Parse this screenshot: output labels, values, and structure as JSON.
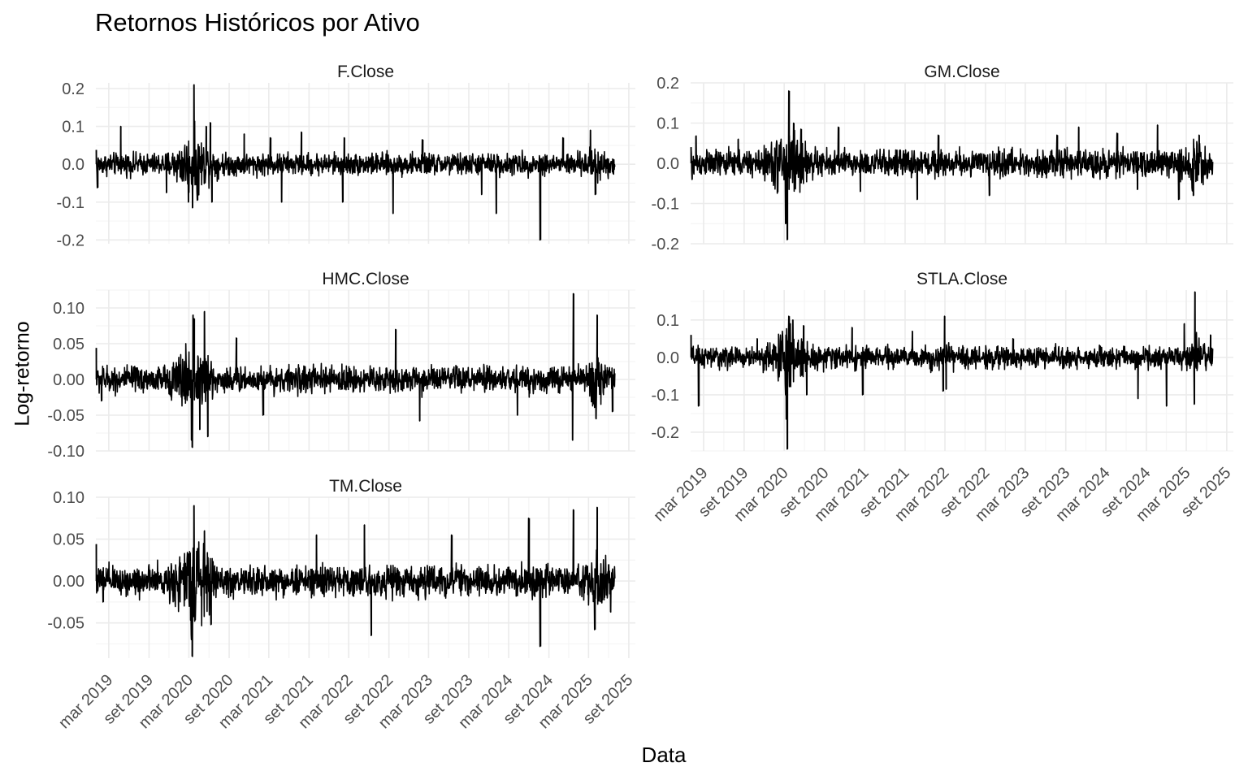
{
  "title": "Retornos Históricos por Ativo",
  "xlabel": "Data",
  "ylabel": "Log-retorno",
  "colors": {
    "line": "#000000",
    "grid_major": "#ebebeb",
    "grid_minor": "#f5f5f5",
    "text": "#4d4d4d"
  },
  "chart_data": {
    "type": "line",
    "layout": "faceted 2-column, free y scales, shared x axis",
    "x_range": [
      "2019-01-01",
      "2025-10-01"
    ],
    "x_ticks": [
      "mar 2019",
      "set 2019",
      "mar 2020",
      "set 2020",
      "mar 2021",
      "set 2021",
      "mar 2022",
      "set 2022",
      "mar 2023",
      "set 2023",
      "mar 2024",
      "set 2024",
      "mar 2025",
      "set 2025"
    ],
    "x_tick_dates": [
      "2019-03-01",
      "2019-09-01",
      "2020-03-01",
      "2020-09-01",
      "2021-03-01",
      "2021-09-01",
      "2022-03-01",
      "2022-09-01",
      "2023-03-01",
      "2023-09-01",
      "2024-03-01",
      "2024-09-01",
      "2025-03-01",
      "2025-09-01"
    ],
    "data_start": "2019-01-03",
    "data_end": "2025-06-30",
    "grid": true,
    "facets": [
      {
        "name": "F.Close",
        "ylim": [
          -0.21,
          0.215
        ],
        "yticks": [
          "-0.2",
          "-0.1",
          "0.0",
          "0.1",
          "0.2"
        ],
        "ytick_values": [
          -0.2,
          -0.1,
          0.0,
          0.1,
          0.2
        ],
        "noise_level": 0.014,
        "spikes": [
          {
            "x": "2019-01-03",
            "y": 0.038
          },
          {
            "x": "2019-01-10",
            "y": -0.062
          },
          {
            "x": "2019-04-25",
            "y": 0.1
          },
          {
            "x": "2019-11-20",
            "y": -0.075
          },
          {
            "x": "2020-02-28",
            "y": -0.1
          },
          {
            "x": "2020-03-18",
            "y": -0.115
          },
          {
            "x": "2020-03-24",
            "y": 0.21
          },
          {
            "x": "2020-04-10",
            "y": -0.095
          },
          {
            "x": "2020-05-20",
            "y": 0.1
          },
          {
            "x": "2020-06-08",
            "y": 0.11
          },
          {
            "x": "2020-06-15",
            "y": -0.1
          },
          {
            "x": "2020-11-09",
            "y": 0.08
          },
          {
            "x": "2021-03-10",
            "y": 0.07
          },
          {
            "x": "2021-04-29",
            "y": -0.1
          },
          {
            "x": "2021-07-29",
            "y": 0.085
          },
          {
            "x": "2022-02-03",
            "y": -0.1
          },
          {
            "x": "2022-02-10",
            "y": 0.07
          },
          {
            "x": "2022-09-20",
            "y": -0.13
          },
          {
            "x": "2023-02-03",
            "y": 0.065
          },
          {
            "x": "2023-10-30",
            "y": -0.08
          },
          {
            "x": "2024-01-05",
            "y": -0.13
          },
          {
            "x": "2024-07-25",
            "y": -0.2
          },
          {
            "x": "2024-11-06",
            "y": 0.07
          },
          {
            "x": "2025-03-10",
            "y": 0.09
          },
          {
            "x": "2025-04-03",
            "y": -0.08
          }
        ]
      },
      {
        "name": "GM.Close",
        "ylim": [
          -0.2,
          0.2
        ],
        "yticks": [
          "-0.2",
          "-0.1",
          "0.0",
          "0.1",
          "0.2"
        ],
        "ytick_values": [
          -0.2,
          -0.1,
          0.0,
          0.1,
          0.2
        ],
        "noise_level": 0.016,
        "spikes": [
          {
            "x": "2019-01-03",
            "y": 0.04
          },
          {
            "x": "2019-01-08",
            "y": -0.04
          },
          {
            "x": "2019-01-25",
            "y": 0.068
          },
          {
            "x": "2019-08-05",
            "y": 0.06
          },
          {
            "x": "2020-03-09",
            "y": -0.15
          },
          {
            "x": "2020-03-16",
            "y": -0.19
          },
          {
            "x": "2020-03-24",
            "y": 0.18
          },
          {
            "x": "2020-04-14",
            "y": 0.1
          },
          {
            "x": "2020-05-18",
            "y": 0.085
          },
          {
            "x": "2020-11-04",
            "y": 0.09
          },
          {
            "x": "2021-02-10",
            "y": -0.07
          },
          {
            "x": "2021-10-27",
            "y": -0.09
          },
          {
            "x": "2022-02-01",
            "y": 0.07
          },
          {
            "x": "2022-09-20",
            "y": -0.08
          },
          {
            "x": "2023-07-25",
            "y": 0.07
          },
          {
            "x": "2023-10-30",
            "y": 0.09
          },
          {
            "x": "2024-04-23",
            "y": 0.075
          },
          {
            "x": "2024-07-23",
            "y": -0.065
          },
          {
            "x": "2024-10-22",
            "y": 0.095
          },
          {
            "x": "2025-01-28",
            "y": -0.09
          },
          {
            "x": "2025-04-03",
            "y": -0.08
          },
          {
            "x": "2025-04-29",
            "y": 0.07
          }
        ]
      },
      {
        "name": "HMC.Close",
        "ylim": [
          -0.1,
          0.125
        ],
        "yticks": [
          "-0.10",
          "-0.05",
          "0.00",
          "0.05",
          "0.10"
        ],
        "ytick_values": [
          -0.1,
          -0.05,
          0.0,
          0.05,
          0.1
        ],
        "noise_level": 0.009,
        "spikes": [
          {
            "x": "2019-01-03",
            "y": 0.044
          },
          {
            "x": "2019-01-28",
            "y": -0.03
          },
          {
            "x": "2020-03-13",
            "y": -0.085
          },
          {
            "x": "2020-03-16",
            "y": -0.095
          },
          {
            "x": "2020-03-20",
            "y": 0.09
          },
          {
            "x": "2020-03-26",
            "y": 0.085
          },
          {
            "x": "2020-04-20",
            "y": -0.07
          },
          {
            "x": "2020-05-11",
            "y": 0.095
          },
          {
            "x": "2020-05-27",
            "y": -0.08
          },
          {
            "x": "2020-10-05",
            "y": 0.058
          },
          {
            "x": "2021-02-05",
            "y": -0.05
          },
          {
            "x": "2022-10-03",
            "y": 0.07
          },
          {
            "x": "2023-01-20",
            "y": -0.058
          },
          {
            "x": "2024-04-10",
            "y": -0.05
          },
          {
            "x": "2024-12-18",
            "y": -0.085
          },
          {
            "x": "2024-12-23",
            "y": 0.12
          },
          {
            "x": "2025-04-04",
            "y": -0.055
          },
          {
            "x": "2025-04-10",
            "y": 0.09
          },
          {
            "x": "2025-06-20",
            "y": -0.045
          }
        ]
      },
      {
        "name": "STLA.Close",
        "ylim": [
          -0.25,
          0.18
        ],
        "yticks": [
          "-0.2",
          "-0.1",
          "0.0",
          "0.1"
        ],
        "ytick_values": [
          -0.2,
          -0.1,
          0.0,
          0.1
        ],
        "noise_level": 0.014,
        "spikes": [
          {
            "x": "2019-01-03",
            "y": 0.06
          },
          {
            "x": "2019-02-08",
            "y": -0.13
          },
          {
            "x": "2019-10-31",
            "y": 0.05
          },
          {
            "x": "2020-03-09",
            "y": -0.1
          },
          {
            "x": "2020-03-12",
            "y": -0.165
          },
          {
            "x": "2020-03-16",
            "y": -0.245
          },
          {
            "x": "2020-03-24",
            "y": 0.11
          },
          {
            "x": "2020-04-09",
            "y": 0.1
          },
          {
            "x": "2020-05-29",
            "y": 0.085
          },
          {
            "x": "2020-06-12",
            "y": -0.1
          },
          {
            "x": "2021-01-04",
            "y": 0.08
          },
          {
            "x": "2021-02-22",
            "y": -0.1
          },
          {
            "x": "2021-10-04",
            "y": 0.07
          },
          {
            "x": "2022-02-22",
            "y": -0.09
          },
          {
            "x": "2022-02-28",
            "y": 0.11
          },
          {
            "x": "2022-03-07",
            "y": -0.085
          },
          {
            "x": "2023-01-06",
            "y": 0.05
          },
          {
            "x": "2024-07-25",
            "y": -0.11
          },
          {
            "x": "2024-12-02",
            "y": -0.13
          },
          {
            "x": "2025-02-20",
            "y": 0.09
          },
          {
            "x": "2025-04-07",
            "y": -0.125
          },
          {
            "x": "2025-04-10",
            "y": 0.175
          },
          {
            "x": "2025-06-20",
            "y": 0.06
          }
        ]
      },
      {
        "name": "TM.Close",
        "ylim": [
          -0.092,
          0.1
        ],
        "yticks": [
          "-0.05",
          "0.00",
          "0.05",
          "0.10"
        ],
        "ytick_values": [
          -0.05,
          0.0,
          0.05,
          0.1
        ],
        "noise_level": 0.009,
        "spikes": [
          {
            "x": "2019-01-03",
            "y": 0.044
          },
          {
            "x": "2019-02-04",
            "y": -0.025
          },
          {
            "x": "2020-03-13",
            "y": -0.07
          },
          {
            "x": "2020-03-16",
            "y": -0.09
          },
          {
            "x": "2020-03-24",
            "y": 0.09
          },
          {
            "x": "2020-05-11",
            "y": 0.06
          },
          {
            "x": "2020-06-11",
            "y": -0.052
          },
          {
            "x": "2021-10-05",
            "y": 0.055
          },
          {
            "x": "2022-05-12",
            "y": 0.067
          },
          {
            "x": "2022-06-13",
            "y": -0.065
          },
          {
            "x": "2023-06-16",
            "y": 0.055
          },
          {
            "x": "2024-06-03",
            "y": 0.075
          },
          {
            "x": "2024-07-25",
            "y": -0.078
          },
          {
            "x": "2024-12-23",
            "y": 0.085
          },
          {
            "x": "2025-03-31",
            "y": -0.058
          },
          {
            "x": "2025-04-10",
            "y": 0.088
          },
          {
            "x": "2025-06-10",
            "y": -0.037
          }
        ]
      }
    ]
  }
}
